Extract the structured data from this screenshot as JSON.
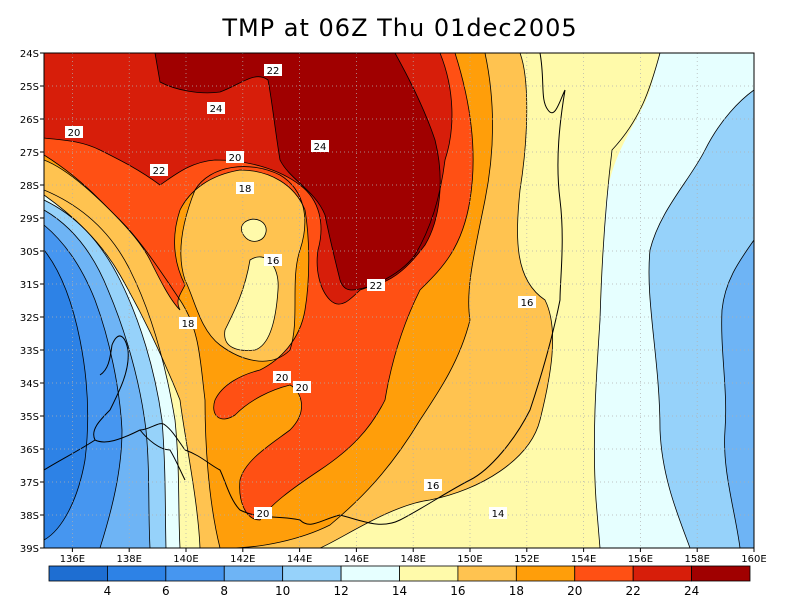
{
  "title": "TMP at 06Z Thu 01dec2005",
  "map": {
    "variable": "TMP",
    "units_shown": "",
    "lon_range": [
      135,
      160
    ],
    "lat_range": [
      -39,
      -24
    ],
    "lon_ticks": [
      136,
      138,
      140,
      142,
      144,
      146,
      148,
      150,
      152,
      154,
      156,
      158,
      160
    ],
    "lon_tick_labels": [
      "136E",
      "138E",
      "140E",
      "142E",
      "144E",
      "146E",
      "148E",
      "150E",
      "152E",
      "154E",
      "156E",
      "158E",
      "160E"
    ],
    "lat_ticks": [
      -24,
      -25,
      -26,
      -27,
      -28,
      -29,
      -30,
      -31,
      -32,
      -33,
      -34,
      -35,
      -36,
      -37,
      -38,
      -39
    ],
    "lat_tick_labels": [
      "24S",
      "25S",
      "26S",
      "27S",
      "28S",
      "29S",
      "30S",
      "31S",
      "32S",
      "33S",
      "34S",
      "35S",
      "36S",
      "37S",
      "38S",
      "39S"
    ],
    "grid": "dotted"
  },
  "colorbar": {
    "levels": [
      2,
      4,
      6,
      8,
      10,
      12,
      14,
      16,
      18,
      20,
      22,
      24,
      26
    ],
    "labels": [
      "4",
      "6",
      "8",
      "10",
      "12",
      "14",
      "16",
      "18",
      "20",
      "22",
      "24"
    ],
    "colors": [
      "#1e6ed2",
      "#2d82e6",
      "#4696f0",
      "#6eb4f5",
      "#96d2fa",
      "#e6ffff",
      "#fffaaa",
      "#ffc350",
      "#ff9e0a",
      "#ff5014",
      "#d71e0a",
      "#a00000"
    ]
  },
  "contour_labels": [
    "22",
    "24",
    "20",
    "22",
    "24",
    "20",
    "18",
    "16",
    "22",
    "16",
    "18",
    "20",
    "20",
    "16",
    "14",
    "20"
  ]
}
